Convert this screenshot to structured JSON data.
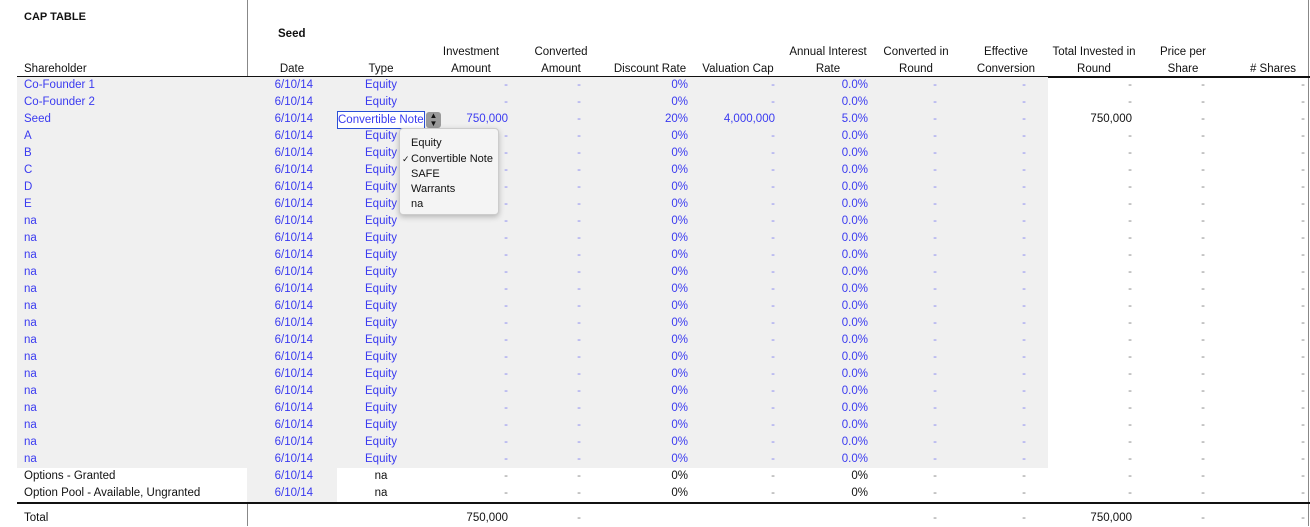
{
  "title": "CAP TABLE",
  "round": "Seed",
  "headers": {
    "shareholder": "Shareholder",
    "date": "Date",
    "type": "Type",
    "investment": "Investment Amount",
    "converted": "Converted Amount",
    "discount": "Discount Rate",
    "cap": "Valuation Cap",
    "interest": "Annual Interest Rate",
    "conv_round": "Converted in Round",
    "effective": "Effective Conversion",
    "total_invested": "Total Invested in Round",
    "price": "Price per Share",
    "shares": "# Shares"
  },
  "rows": [
    [
      "Co-Founder 1",
      "6/10/14",
      "Equity",
      "-",
      "-",
      "0%",
      "-",
      "0.0%",
      "-",
      "-",
      "-",
      "-",
      "-"
    ],
    [
      "Co-Founder 2",
      "6/10/14",
      "Equity",
      "-",
      "-",
      "0%",
      "-",
      "0.0%",
      "-",
      "-",
      "-",
      "-",
      "-"
    ],
    [
      "Seed",
      "6/10/14",
      "Convertible Note",
      "750,000",
      "-",
      "20%",
      "4,000,000",
      "5.0%",
      "-",
      "-",
      "750,000",
      "-",
      "-"
    ],
    [
      "A",
      "6/10/14",
      "Equity",
      "-",
      "-",
      "0%",
      "-",
      "0.0%",
      "-",
      "-",
      "-",
      "-",
      "-"
    ],
    [
      "B",
      "6/10/14",
      "Equity",
      "-",
      "-",
      "0%",
      "-",
      "0.0%",
      "-",
      "-",
      "-",
      "-",
      "-"
    ],
    [
      "C",
      "6/10/14",
      "Equity",
      "-",
      "-",
      "0%",
      "-",
      "0.0%",
      "-",
      "-",
      "-",
      "-",
      "-"
    ],
    [
      "D",
      "6/10/14",
      "Equity",
      "-",
      "-",
      "0%",
      "-",
      "0.0%",
      "-",
      "-",
      "-",
      "-",
      "-"
    ],
    [
      "E",
      "6/10/14",
      "Equity",
      "-",
      "-",
      "0%",
      "-",
      "0.0%",
      "-",
      "-",
      "-",
      "-",
      "-"
    ],
    [
      "na",
      "6/10/14",
      "Equity",
      "-",
      "-",
      "0%",
      "-",
      "0.0%",
      "-",
      "-",
      "-",
      "-",
      "-"
    ],
    [
      "na",
      "6/10/14",
      "Equity",
      "-",
      "-",
      "0%",
      "-",
      "0.0%",
      "-",
      "-",
      "-",
      "-",
      "-"
    ],
    [
      "na",
      "6/10/14",
      "Equity",
      "-",
      "-",
      "0%",
      "-",
      "0.0%",
      "-",
      "-",
      "-",
      "-",
      "-"
    ],
    [
      "na",
      "6/10/14",
      "Equity",
      "-",
      "-",
      "0%",
      "-",
      "0.0%",
      "-",
      "-",
      "-",
      "-",
      "-"
    ],
    [
      "na",
      "6/10/14",
      "Equity",
      "-",
      "-",
      "0%",
      "-",
      "0.0%",
      "-",
      "-",
      "-",
      "-",
      "-"
    ],
    [
      "na",
      "6/10/14",
      "Equity",
      "-",
      "-",
      "0%",
      "-",
      "0.0%",
      "-",
      "-",
      "-",
      "-",
      "-"
    ],
    [
      "na",
      "6/10/14",
      "Equity",
      "-",
      "-",
      "0%",
      "-",
      "0.0%",
      "-",
      "-",
      "-",
      "-",
      "-"
    ],
    [
      "na",
      "6/10/14",
      "Equity",
      "-",
      "-",
      "0%",
      "-",
      "0.0%",
      "-",
      "-",
      "-",
      "-",
      "-"
    ],
    [
      "na",
      "6/10/14",
      "Equity",
      "-",
      "-",
      "0%",
      "-",
      "0.0%",
      "-",
      "-",
      "-",
      "-",
      "-"
    ],
    [
      "na",
      "6/10/14",
      "Equity",
      "-",
      "-",
      "0%",
      "-",
      "0.0%",
      "-",
      "-",
      "-",
      "-",
      "-"
    ],
    [
      "na",
      "6/10/14",
      "Equity",
      "-",
      "-",
      "0%",
      "-",
      "0.0%",
      "-",
      "-",
      "-",
      "-",
      "-"
    ],
    [
      "na",
      "6/10/14",
      "Equity",
      "-",
      "-",
      "0%",
      "-",
      "0.0%",
      "-",
      "-",
      "-",
      "-",
      "-"
    ],
    [
      "na",
      "6/10/14",
      "Equity",
      "-",
      "-",
      "0%",
      "-",
      "0.0%",
      "-",
      "-",
      "-",
      "-",
      "-"
    ],
    [
      "na",
      "6/10/14",
      "Equity",
      "-",
      "-",
      "0%",
      "-",
      "0.0%",
      "-",
      "-",
      "-",
      "-",
      "-"
    ],
    [
      "na",
      "6/10/14",
      "Equity",
      "-",
      "-",
      "0%",
      "-",
      "0.0%",
      "-",
      "-",
      "-",
      "-",
      "-"
    ]
  ],
  "option_rows": [
    [
      "Options - Granted",
      "6/10/14",
      "na",
      "-",
      "-",
      "0%",
      "-",
      "0%",
      "-",
      "-",
      "-",
      "-",
      "-"
    ],
    [
      "Option Pool - Available, Ungranted",
      "6/10/14",
      "na",
      "-",
      "-",
      "0%",
      "-",
      "0%",
      "-",
      "-",
      "-",
      "-",
      "-"
    ]
  ],
  "total_row": [
    "Total",
    "",
    "",
    "750,000",
    "-",
    "",
    "",
    "",
    "-",
    "-",
    "750,000",
    "-",
    "-"
  ],
  "dropdown": {
    "value": "Convertible Note",
    "options": [
      "Equity",
      "Convertible Note",
      "SAFE",
      "Warrants",
      "na"
    ],
    "checked": "✓"
  },
  "colors": {
    "input_blue": "#3a3af0",
    "input_bg": "#f0f0f0",
    "focus": "#2a4fd6"
  }
}
